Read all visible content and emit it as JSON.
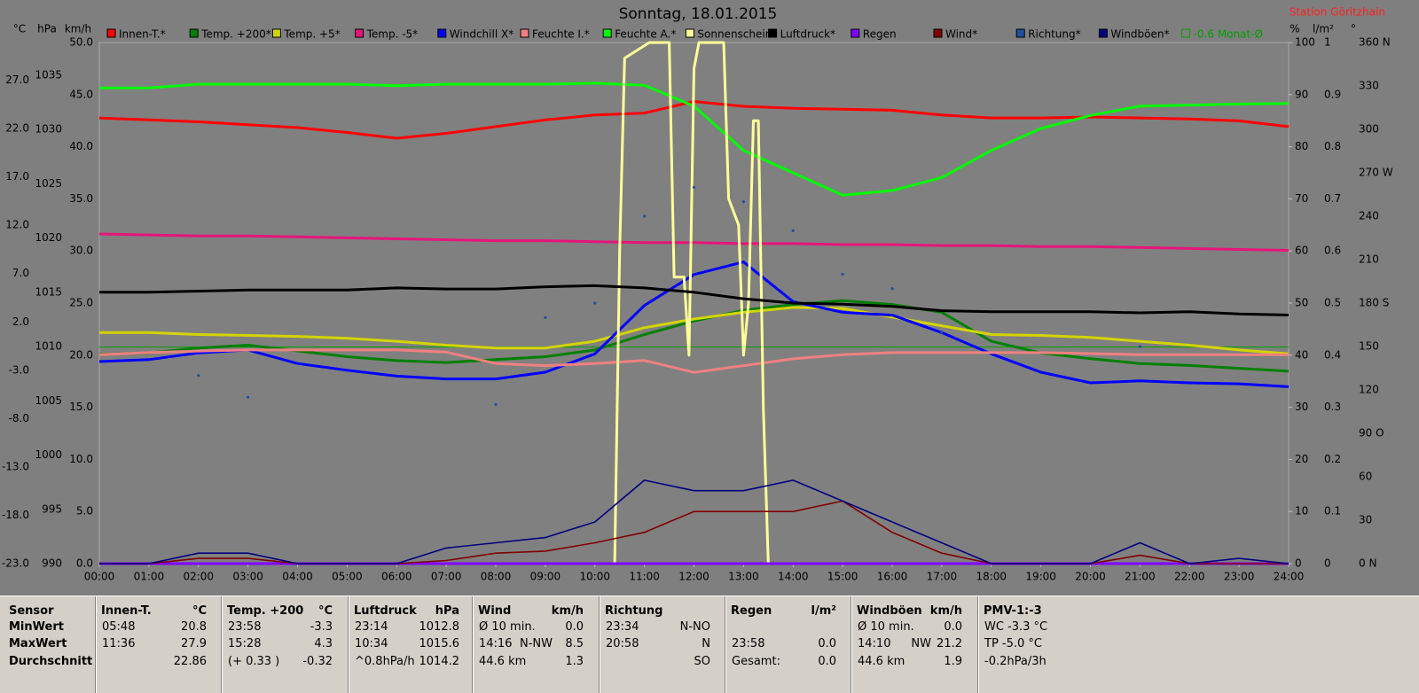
{
  "chart_data": {
    "type": "line",
    "title": "Sonntag, 18.01.2015",
    "station": "Station Göritzhain",
    "xlim": [
      0,
      24
    ],
    "xticks": [
      {
        "value": 0,
        "label": "00:00"
      },
      {
        "value": 1,
        "label": "01:00"
      },
      {
        "value": 2,
        "label": "02:00"
      },
      {
        "value": 3,
        "label": "03:00"
      },
      {
        "value": 4,
        "label": "04:00"
      },
      {
        "value": 5,
        "label": "05:00"
      },
      {
        "value": 6,
        "label": "06:00"
      },
      {
        "value": 7,
        "label": "07:00"
      },
      {
        "value": 8,
        "label": "08:00"
      },
      {
        "value": 9,
        "label": "09:00"
      },
      {
        "value": 10,
        "label": "10:00"
      },
      {
        "value": 11,
        "label": "11:00"
      },
      {
        "value": 12,
        "label": "12:00"
      },
      {
        "value": 13,
        "label": "13:00"
      },
      {
        "value": 14,
        "label": "14:00"
      },
      {
        "value": 15,
        "label": "15:00"
      },
      {
        "value": 16,
        "label": "16:00"
      },
      {
        "value": 17,
        "label": "17:00"
      },
      {
        "value": 18,
        "label": "18:00"
      },
      {
        "value": 19,
        "label": "19:00"
      },
      {
        "value": 20,
        "label": "20:00"
      },
      {
        "value": 21,
        "label": "21:00"
      },
      {
        "value": 22,
        "label": "22:00"
      },
      {
        "value": 23,
        "label": "23:00"
      },
      {
        "value": 24,
        "label": "24:00"
      }
    ],
    "x": [
      0,
      1,
      2,
      3,
      4,
      5,
      6,
      7,
      8,
      9,
      10,
      11,
      12,
      13,
      14,
      15,
      16,
      17,
      18,
      19,
      20,
      21,
      22,
      23,
      24
    ],
    "axes": {
      "c": {
        "label": "°C",
        "lim": [
          -23,
          30.9
        ],
        "ticks": [
          {
            "value": -23,
            "label": "-23.0"
          },
          {
            "value": -18,
            "label": "-18.0"
          },
          {
            "value": -13,
            "label": "-13.0"
          },
          {
            "value": -8,
            "label": "-8.0"
          },
          {
            "value": -3,
            "label": "-3.0"
          },
          {
            "value": 2,
            "label": "2.0"
          },
          {
            "value": 7,
            "label": "7.0"
          },
          {
            "value": 12,
            "label": "12.0"
          },
          {
            "value": 17,
            "label": "17.0"
          },
          {
            "value": 22,
            "label": "22.0"
          },
          {
            "value": 27,
            "label": "27.0"
          }
        ]
      },
      "hpa": {
        "label": "hPa",
        "lim": [
          990,
          1038
        ],
        "ticks": [
          990,
          995,
          1000,
          1005,
          1010,
          1015,
          1020,
          1025,
          1030,
          1035
        ]
      },
      "kmh": {
        "label": "km/h",
        "lim": [
          0,
          50
        ],
        "ticks": [
          {
            "value": 0,
            "label": "0.0"
          },
          {
            "value": 5,
            "label": "5.0"
          },
          {
            "value": 10,
            "label": "10.0"
          },
          {
            "value": 15,
            "label": "15.0"
          },
          {
            "value": 20,
            "label": "20.0"
          },
          {
            "value": 25,
            "label": "25.0"
          },
          {
            "value": 30,
            "label": "30.0"
          },
          {
            "value": 35,
            "label": "35.0"
          },
          {
            "value": 40,
            "label": "40.0"
          },
          {
            "value": 45,
            "label": "45.0"
          },
          {
            "value": 50,
            "label": "50.0"
          }
        ]
      },
      "pct": {
        "label": "%",
        "lim": [
          0,
          100
        ],
        "ticks": [
          0,
          10,
          20,
          30,
          40,
          50,
          60,
          70,
          80,
          90,
          100
        ]
      },
      "lm2": {
        "label": "l/m²",
        "lim": [
          0,
          1
        ],
        "ticks": [
          0,
          0.1,
          0.2,
          0.3,
          0.4,
          0.5,
          0.6,
          0.7,
          0.8,
          0.9,
          1
        ]
      },
      "deg": {
        "label": "°",
        "lim": [
          0,
          360
        ],
        "ticks": [
          {
            "value": 0,
            "label": "0 N"
          },
          30,
          60,
          {
            "value": 90,
            "label": "90 O"
          },
          120,
          150,
          {
            "value": 180,
            "label": "180 S"
          },
          210,
          240,
          {
            "value": 270,
            "label": "270 W"
          },
          300,
          330,
          {
            "value": 360,
            "label": "360 N"
          }
        ]
      }
    },
    "series": [
      {
        "name": "Innen-T.*",
        "color": "#ff0000",
        "axis": "c",
        "values": [
          23.1,
          22.9,
          22.7,
          22.4,
          22.1,
          21.6,
          21.0,
          21.5,
          22.2,
          22.9,
          23.4,
          23.6,
          24.8,
          24.3,
          24.1,
          24.0,
          23.9,
          23.4,
          23.1,
          23.1,
          23.2,
          23.1,
          23.0,
          22.8,
          22.2
        ]
      },
      {
        "name": "Temp. +200*",
        "color": "#008000",
        "axis": "c",
        "values": [
          -1.35,
          -1.2,
          -0.7,
          -0.4,
          -1.0,
          -1.6,
          -2.0,
          -2.2,
          -1.9,
          -1.6,
          -0.9,
          0.7,
          2.1,
          3.2,
          3.8,
          4.2,
          3.8,
          3.0,
          0.0,
          -1.2,
          -1.8,
          -2.3,
          -2.5,
          -2.8,
          -3.1
        ]
      },
      {
        "name": "Temp. +5*",
        "color": "#d4d400",
        "axis": "c",
        "values": [
          0.9,
          0.9,
          0.7,
          0.6,
          0.5,
          0.3,
          0.0,
          -0.4,
          -0.7,
          -0.7,
          0.0,
          1.4,
          2.3,
          3.0,
          3.5,
          3.4,
          2.5,
          1.6,
          0.7,
          0.6,
          0.4,
          0.0,
          -0.4,
          -0.9,
          -1.3
        ]
      },
      {
        "name": "Temp. -5*",
        "color": "#e6157a",
        "axis": "c",
        "values": [
          11.1,
          11.0,
          10.9,
          10.9,
          10.8,
          10.7,
          10.6,
          10.5,
          10.4,
          10.4,
          10.3,
          10.2,
          10.2,
          10.1,
          10.1,
          10.0,
          10.0,
          9.9,
          9.9,
          9.8,
          9.8,
          9.7,
          9.6,
          9.5,
          9.4
        ]
      },
      {
        "name": "Windchill X*",
        "color": "#0000ff",
        "axis": "c",
        "values": [
          -2.1,
          -1.9,
          -1.2,
          -0.9,
          -2.3,
          -3.0,
          -3.6,
          -3.9,
          -3.9,
          -3.2,
          -1.3,
          3.7,
          6.9,
          8.2,
          4.1,
          3.0,
          2.7,
          0.9,
          -1.3,
          -3.2,
          -4.3,
          -4.1,
          -4.3,
          -4.4,
          -4.7
        ]
      },
      {
        "name": "Feuchte I.*",
        "color": "#f08080",
        "axis": "pct",
        "values": [
          40.1,
          40.5,
          40.8,
          41.0,
          41.0,
          41.0,
          41.0,
          40.6,
          38.4,
          38.0,
          38.4,
          39.0,
          36.7,
          38.0,
          39.3,
          40.1,
          40.5,
          40.5,
          40.5,
          40.5,
          40.3,
          40.1,
          40.1,
          40.1,
          40.1
        ]
      },
      {
        "name": "Feuchte A.*",
        "color": "#00ff00",
        "axis": "pct",
        "values": [
          91.3,
          91.3,
          92.0,
          92.0,
          92.0,
          92.0,
          91.7,
          92.0,
          92.0,
          92.0,
          92.2,
          91.8,
          87.8,
          79.3,
          75.0,
          70.7,
          71.6,
          74.1,
          79.3,
          83.5,
          86.0,
          87.8,
          88.0,
          88.2,
          88.3
        ]
      },
      {
        "name": "Sonnenschein",
        "color": "#ffff99",
        "axis": "pct",
        "x": [
          0,
          10.4,
          10.5,
          10.6,
          11.1,
          11.5,
          11.6,
          11.8,
          11.9,
          12.0,
          12.1,
          12.4,
          12.6,
          12.7,
          12.9,
          13.0,
          13.1,
          13.2,
          13.3,
          13.4,
          13.5,
          24
        ],
        "values": [
          0,
          0,
          60,
          97,
          100,
          100,
          55,
          55,
          40,
          95,
          100,
          100,
          100,
          70,
          65,
          40,
          50,
          85,
          85,
          30,
          0,
          0
        ]
      },
      {
        "name": "Luftdruck*",
        "color": "#000000",
        "axis": "hpa",
        "values": [
          1015.0,
          1015.0,
          1015.1,
          1015.2,
          1015.2,
          1015.2,
          1015.4,
          1015.3,
          1015.3,
          1015.5,
          1015.6,
          1015.4,
          1015.0,
          1014.4,
          1014.0,
          1013.9,
          1013.7,
          1013.3,
          1013.2,
          1013.2,
          1013.2,
          1013.1,
          1013.2,
          1013.0,
          1012.9
        ]
      },
      {
        "name": "Regen",
        "color": "#8000ff",
        "axis": "lm2",
        "values": [
          0,
          0,
          0,
          0,
          0,
          0,
          0,
          0,
          0,
          0,
          0,
          0,
          0,
          0,
          0,
          0,
          0,
          0,
          0,
          0,
          0,
          0,
          0,
          0,
          0
        ]
      },
      {
        "name": "Wind*",
        "color": "#800000",
        "axis": "kmh",
        "values": [
          0,
          0,
          0.5,
          0.5,
          0,
          0,
          0,
          0.3,
          1.0,
          1.2,
          2.0,
          3.0,
          5.0,
          5.0,
          5.0,
          6.0,
          3.0,
          1.0,
          0,
          0,
          0,
          0.8,
          0,
          0,
          0
        ]
      },
      {
        "name": "Richtung*",
        "color": "#2050a0",
        "axis": "deg",
        "style": "dots",
        "values": [
          null,
          null,
          130,
          115,
          null,
          null,
          null,
          null,
          110,
          170,
          180,
          240,
          260,
          250,
          230,
          200,
          190,
          160,
          null,
          null,
          null,
          150,
          null,
          null,
          null
        ]
      },
      {
        "name": "Windböen*",
        "color": "#000080",
        "axis": "kmh",
        "values": [
          0,
          0,
          1.0,
          1.0,
          0,
          0,
          0,
          1.5,
          2.0,
          2.5,
          4.0,
          8.0,
          7.0,
          7.0,
          8.0,
          6.0,
          4.0,
          2.0,
          0,
          0,
          0,
          2.0,
          0,
          0.5,
          0
        ]
      }
    ],
    "monthly_avg": {
      "value": -0.6,
      "label": "-0.6 Monat-Ø",
      "color": "#00a000",
      "axis": "c"
    }
  },
  "stats": {
    "header_label": "Sensor",
    "row_labels": [
      "MinWert",
      "MaxWert",
      "Durchschnitt"
    ],
    "columns": [
      {
        "name": "Innen-T.",
        "unit": "°C",
        "rows": [
          {
            "time": "05:48",
            "value": "20.8"
          },
          {
            "time": "11:36",
            "value": "27.9"
          },
          {
            "value": "22.86"
          }
        ]
      },
      {
        "name": "Temp. +200",
        "unit": "°C",
        "rows": [
          {
            "time": "23:58",
            "value": "-3.3"
          },
          {
            "time": "15:28",
            "value": "4.3"
          },
          {
            "time": "(+ 0.33 )",
            "value": "-0.32"
          }
        ]
      },
      {
        "name": "Luftdruck",
        "unit": "hPa",
        "rows": [
          {
            "time": "23:14",
            "value": "1012.8"
          },
          {
            "time": "10:34",
            "value": "1015.6"
          },
          {
            "time": "^0.8hPa/h",
            "value": "1014.2"
          }
        ]
      },
      {
        "name": "Wind",
        "unit": "km/h",
        "rows": [
          {
            "time": "Ø 10 min.",
            "value": "0.0"
          },
          {
            "time": "14:16",
            "dir": "N-NW",
            "value": "8.5"
          },
          {
            "time": "44.6 km",
            "value": "1.3"
          }
        ]
      },
      {
        "name": "Richtung",
        "rows": [
          {
            "time": "23:34",
            "dir": "N-NO"
          },
          {
            "time": "20:58",
            "dir": "N"
          },
          {
            "dir": "SO"
          }
        ]
      },
      {
        "name": "Regen",
        "unit": "l/m²",
        "rows": [
          {},
          {
            "time": "23:58",
            "value": "0.0"
          },
          {
            "time": "Gesamt:",
            "value": "0.0"
          }
        ]
      },
      {
        "name": "Windböen",
        "unit": "km/h",
        "rows": [
          {
            "time": "Ø 10 min.",
            "value": "0.0"
          },
          {
            "time": "14:10",
            "dir": "NW",
            "value": "21.2"
          },
          {
            "time": "44.6 km",
            "value": "1.9"
          }
        ]
      },
      {
        "name": "PMV-1:-3",
        "rows": [
          {
            "time": "WC -3.3 °C"
          },
          {
            "time": "TP -5.0 °C"
          },
          {
            "time": "-0.2hPa/3h"
          }
        ]
      }
    ]
  }
}
